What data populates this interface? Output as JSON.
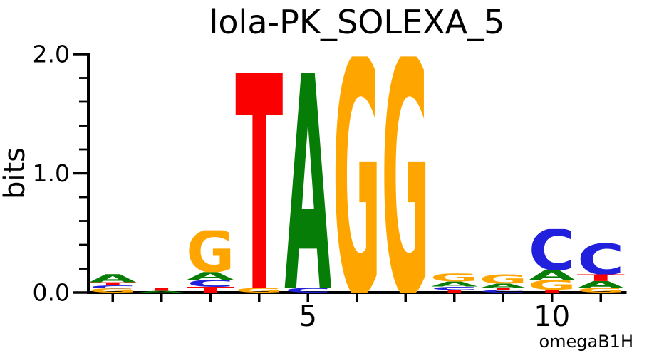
{
  "chart_data": {
    "type": "sequence_logo",
    "title": "lola-PK_SOLEXA_5",
    "ylabel": "bits",
    "ylim": [
      0.0,
      2.0
    ],
    "ytick_major": [
      0.0,
      1.0,
      2.0
    ],
    "ytick_labels": [
      "0.0",
      "1.0",
      "2.0"
    ],
    "y_minor_tick_step": 0.2,
    "num_positions": 11,
    "xtick_labels": [
      {
        "pos": 5,
        "label": "5"
      },
      {
        "pos": 10,
        "label": "10"
      }
    ],
    "attribution": "omegaB1H",
    "grid": false,
    "legend": false,
    "alphabet_colors": {
      "A": "#067d06",
      "C": "#2020dd",
      "G": "#ffa500",
      "T": "#fa0000"
    },
    "axis_color": "#000000",
    "stack_order": "bottom_to_top",
    "positions": [
      {
        "pos": 1,
        "stack": [
          {
            "base": "G",
            "bits": 0.034
          },
          {
            "base": "C",
            "bits": 0.028
          },
          {
            "base": "T",
            "bits": 0.024
          },
          {
            "base": "A",
            "bits": 0.068
          }
        ]
      },
      {
        "pos": 2,
        "stack": [
          {
            "base": "A",
            "bits": 0.014
          },
          {
            "base": "T",
            "bits": 0.026
          }
        ]
      },
      {
        "pos": 3,
        "stack": [
          {
            "base": "T",
            "bits": 0.048
          },
          {
            "base": "C",
            "bits": 0.058
          },
          {
            "base": "A",
            "bits": 0.066
          },
          {
            "base": "G",
            "bits": 0.35
          }
        ]
      },
      {
        "pos": 4,
        "stack": [
          {
            "base": "G",
            "bits": 0.04
          },
          {
            "base": "T",
            "bits": 1.8
          }
        ]
      },
      {
        "pos": 5,
        "stack": [
          {
            "base": "C",
            "bits": 0.04
          },
          {
            "base": "A",
            "bits": 1.8
          }
        ]
      },
      {
        "pos": 6,
        "stack": [
          {
            "base": "G",
            "bits": 1.98
          }
        ]
      },
      {
        "pos": 7,
        "stack": [
          {
            "base": "G",
            "bits": 1.98
          }
        ]
      },
      {
        "pos": 8,
        "stack": [
          {
            "base": "T",
            "bits": 0.022
          },
          {
            "base": "C",
            "bits": 0.028
          },
          {
            "base": "A",
            "bits": 0.042
          },
          {
            "base": "G",
            "bits": 0.068
          }
        ]
      },
      {
        "pos": 9,
        "stack": [
          {
            "base": "C",
            "bits": 0.02
          },
          {
            "base": "T",
            "bits": 0.02
          },
          {
            "base": "A",
            "bits": 0.036
          },
          {
            "base": "G",
            "bits": 0.078
          }
        ]
      },
      {
        "pos": 10,
        "stack": [
          {
            "base": "T",
            "bits": 0.024
          },
          {
            "base": "G",
            "bits": 0.08
          },
          {
            "base": "A",
            "bits": 0.084
          },
          {
            "base": "C",
            "bits": 0.344
          }
        ]
      },
      {
        "pos": 11,
        "stack": [
          {
            "base": "G",
            "bits": 0.04
          },
          {
            "base": "A",
            "bits": 0.056
          },
          {
            "base": "T",
            "bits": 0.056
          },
          {
            "base": "C",
            "bits": 0.26
          }
        ]
      }
    ]
  }
}
